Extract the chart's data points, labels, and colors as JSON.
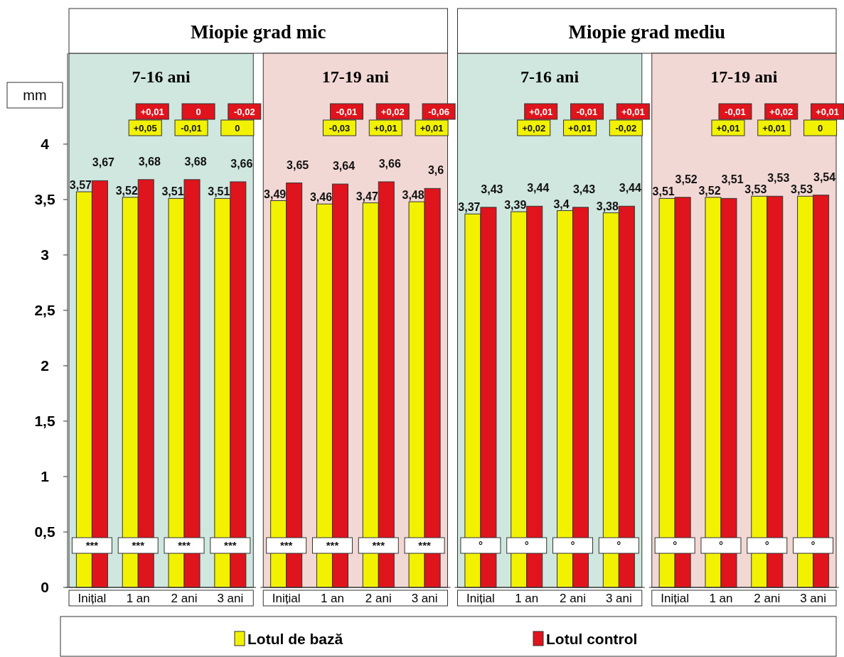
{
  "chart_data": [
    {
      "type": "bar",
      "title": "Miopie grad mic",
      "subtitle": "7-16 ani",
      "ylabel": "mm",
      "categories": [
        "Inițial",
        "1 an",
        "2 ani",
        "3 ani"
      ],
      "series": [
        {
          "name": "Lotul de bază",
          "color": "#f2f200",
          "values": [
            3.57,
            3.52,
            3.51,
            3.51
          ],
          "value_labels": [
            "3,57",
            "3,52",
            "3,51",
            "3,51"
          ]
        },
        {
          "name": "Lotul control",
          "color": "#e0141c",
          "values": [
            3.67,
            3.68,
            3.68,
            3.66
          ],
          "value_labels": [
            "3,67",
            "3,68",
            "3,68",
            "3,66"
          ]
        }
      ],
      "ylim": [
        0,
        4.82
      ],
      "yticks": [
        0,
        {
          "value": 0.5,
          "label": "0,5"
        },
        1,
        {
          "value": 1.5,
          "label": "1,5"
        },
        2,
        {
          "value": 2.5,
          "label": "2,5"
        },
        3,
        {
          "value": 3.5,
          "label": "3,5"
        },
        4
      ],
      "bands": [
        {
          "axis": "y",
          "from": 0,
          "to": 4.82,
          "color": "#cfe7df"
        }
      ],
      "legend": "bottom",
      "grid": false,
      "annotations": [
        "***",
        "***",
        "***",
        "***",
        "+0,01",
        "+0,05",
        "0",
        "-0,01",
        "-0,02",
        "0"
      ]
    },
    {
      "type": "bar",
      "subtitle": "17-19 ani",
      "categories": [
        "Inițial",
        "1 an",
        "2 ani",
        "3 ani"
      ],
      "series": [
        {
          "color": "#f2f200",
          "values": [
            3.49,
            3.46,
            3.47,
            3.48
          ],
          "value_labels": [
            "3,49",
            "3,46",
            "3,47",
            "3,48"
          ]
        },
        {
          "color": "#e0141c",
          "values": [
            3.65,
            3.64,
            3.66,
            3.6
          ],
          "value_labels": [
            "3,65",
            "3,64",
            "3,66",
            "3,6"
          ]
        }
      ],
      "ylim": [
        0,
        4.82
      ],
      "tick_labels": "x",
      "bands": [
        {
          "axis": "y",
          "from": 0,
          "to": 4.82,
          "color": "#f2d8d4"
        }
      ],
      "grid": false,
      "annotations": [
        "***",
        "***",
        "***",
        "***",
        "-0,01",
        "-0,03",
        "+0,02",
        "+0,01",
        "-0,06",
        "+0,01"
      ]
    },
    {
      "type": "bar",
      "title": "Miopie grad mediu",
      "subtitle": "7-16 ani",
      "categories": [
        "Inițial",
        "1 an",
        "2 ani",
        "3 ani"
      ],
      "series": [
        {
          "color": "#f2f200",
          "values": [
            3.37,
            3.39,
            3.4,
            3.38
          ],
          "value_labels": [
            "3,37",
            "3,39",
            "3,4",
            "3,38"
          ]
        },
        {
          "color": "#e0141c",
          "values": [
            3.43,
            3.44,
            3.43,
            3.44
          ],
          "value_labels": [
            "3,43",
            "3,44",
            "3,43",
            "3,44"
          ]
        }
      ],
      "ylim": [
        0,
        4.82
      ],
      "tick_labels": "x",
      "bands": [
        {
          "axis": "y",
          "from": 0,
          "to": 4.82,
          "color": "#cfe7df"
        }
      ],
      "grid": false,
      "annotations": [
        "°",
        "°",
        "°",
        "°",
        "+0,01",
        "+0,02",
        "-0,01",
        "+0,01",
        "+0,01",
        "-0,02"
      ]
    },
    {
      "type": "bar",
      "subtitle": "17-19 ani",
      "categories": [
        "Inițial",
        "1 an",
        "2 ani",
        "3 ani"
      ],
      "series": [
        {
          "color": "#f2f200",
          "values": [
            3.51,
            3.52,
            3.53,
            3.53
          ],
          "value_labels": [
            "3,51",
            "3,52",
            "3,53",
            "3,53"
          ]
        },
        {
          "color": "#e0141c",
          "values": [
            3.52,
            3.51,
            3.53,
            3.54
          ],
          "value_labels": [
            "3,52",
            "3,51",
            "3,53",
            "3,54"
          ]
        }
      ],
      "ylim": [
        0,
        4.82
      ],
      "tick_labels": "x",
      "bands": [
        {
          "axis": "y",
          "from": 0,
          "to": 4.82,
          "color": "#f2d8d4"
        }
      ],
      "grid": false,
      "annotations": [
        "°",
        "°",
        "°",
        "°",
        "-0,01",
        "+0,01",
        "+0,02",
        "+0,01",
        "+0,01",
        "0"
      ]
    }
  ]
}
